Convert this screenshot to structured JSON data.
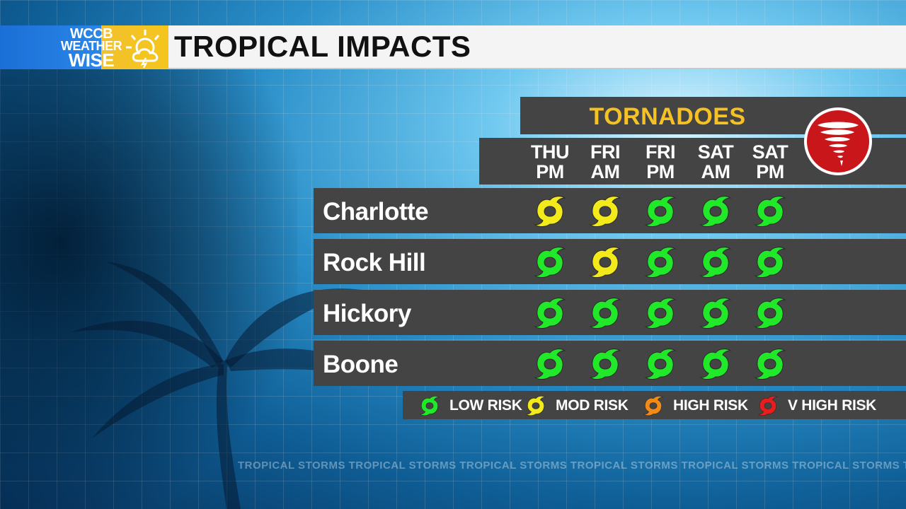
{
  "header": {
    "logo_line1": "WCCB",
    "logo_line2": "WEATHER",
    "logo_line3": "WISE",
    "title": "TROPICAL IMPACTS"
  },
  "panel": {
    "title": "TORNADOES",
    "icon": "tornado-icon",
    "days": [
      {
        "day": "THU",
        "period": "PM"
      },
      {
        "day": "FRI",
        "period": "AM"
      },
      {
        "day": "FRI",
        "period": "PM"
      },
      {
        "day": "SAT",
        "period": "AM"
      },
      {
        "day": "SAT",
        "period": "PM"
      }
    ],
    "rows": [
      {
        "city": "Charlotte",
        "risks": [
          "mod",
          "mod",
          "low",
          "low",
          "low"
        ]
      },
      {
        "city": "Rock Hill",
        "risks": [
          "low",
          "mod",
          "low",
          "low",
          "low"
        ]
      },
      {
        "city": "Hickory",
        "risks": [
          "low",
          "low",
          "low",
          "low",
          "low"
        ]
      },
      {
        "city": "Boone",
        "risks": [
          "low",
          "low",
          "low",
          "low",
          "low"
        ]
      }
    ]
  },
  "legend": [
    {
      "level": "low",
      "label": "LOW RISK"
    },
    {
      "level": "mod",
      "label": "MOD RISK"
    },
    {
      "level": "high",
      "label": "HIGH RISK"
    },
    {
      "level": "vhigh",
      "label": "V HIGH RISK"
    }
  ],
  "risk_colors": {
    "low": "#22e82a",
    "mod": "#f2ea1a",
    "high": "#f28a18",
    "vhigh": "#e81e1e"
  },
  "background_text": "TROPICAL STORMS TROPICAL STORMS TROPICAL STORMS TROPICAL STORMS TROPICAL STORMS TROPICAL STORMS TRO"
}
